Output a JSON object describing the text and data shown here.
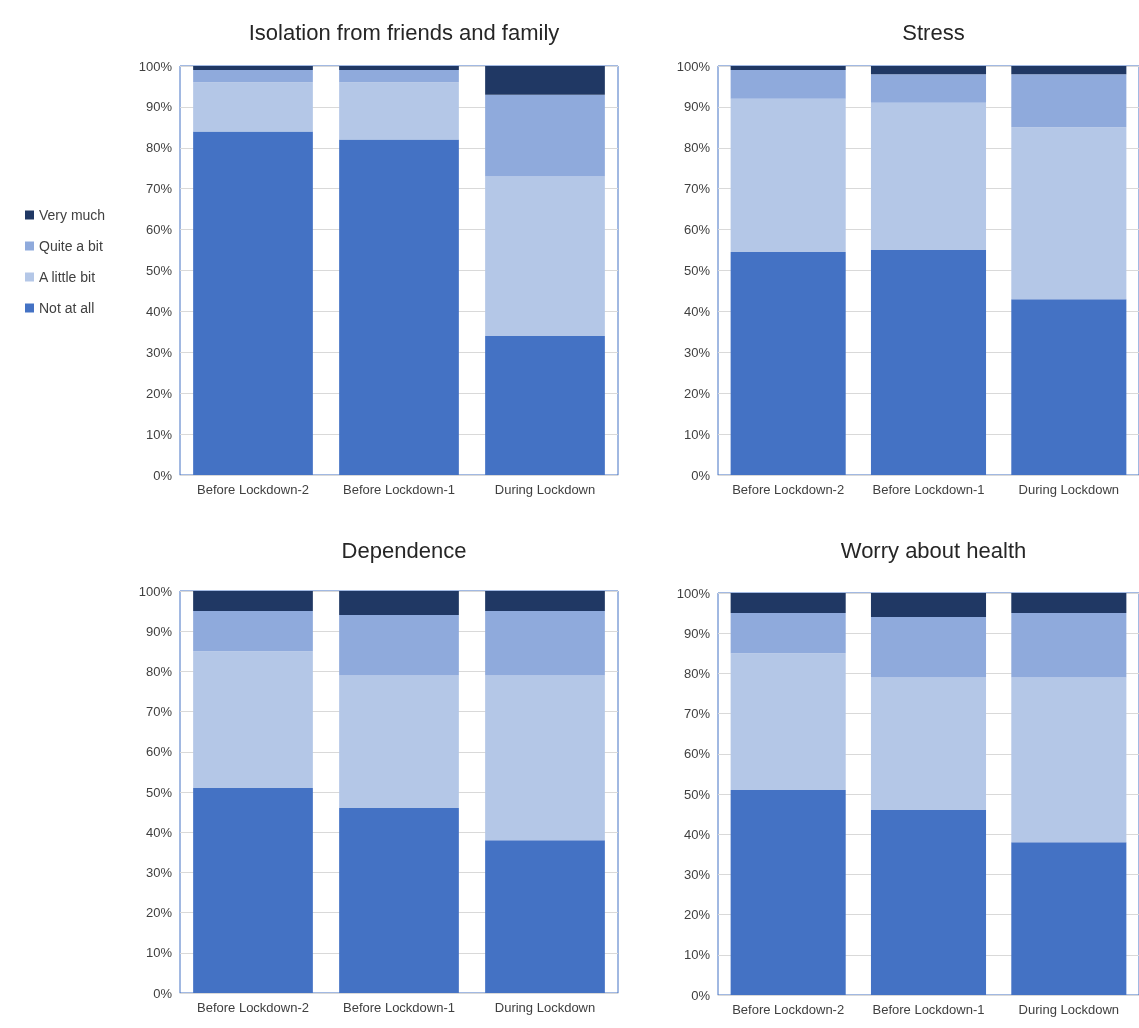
{
  "chart_data": [
    {
      "type": "bar",
      "title": "Isolation from friends and family",
      "categories": [
        "Before Lockdown-2",
        "Before Lockdown-1",
        "During Lockdown"
      ],
      "stacked": true,
      "ylim": [
        0,
        100
      ],
      "yticks": [
        {
          "value": 0,
          "label": "0%"
        },
        {
          "value": 10,
          "label": "10%"
        },
        {
          "value": 20,
          "label": "20%"
        },
        {
          "value": 30,
          "label": "30%"
        },
        {
          "value": 40,
          "label": "40%"
        },
        {
          "value": 50,
          "label": "50%"
        },
        {
          "value": 60,
          "label": "60%"
        },
        {
          "value": 70,
          "label": "70%"
        },
        {
          "value": 80,
          "label": "80%"
        },
        {
          "value": 90,
          "label": "90%"
        },
        {
          "value": 100,
          "label": "100%"
        }
      ],
      "grid": "y",
      "legend": "left",
      "series": [
        {
          "name": "Not at all",
          "color": "#4472c4",
          "values": [
            84,
            82,
            34
          ]
        },
        {
          "name": "A little bit",
          "color": "#b4c7e7",
          "values": [
            12,
            14,
            39
          ]
        },
        {
          "name": "Quite a bit",
          "color": "#8faadc",
          "values": [
            3,
            3,
            20
          ]
        },
        {
          "name": "Very much",
          "color": "#203864",
          "values": [
            1,
            1,
            7
          ]
        }
      ]
    },
    {
      "type": "bar",
      "title": "Stress",
      "categories": [
        "Before Lockdown-2",
        "Before Lockdown-1",
        "During Lockdown"
      ],
      "stacked": true,
      "ylim": [
        0,
        100
      ],
      "yticks": [
        {
          "value": 0,
          "label": "0%"
        },
        {
          "value": 10,
          "label": "10%"
        },
        {
          "value": 20,
          "label": "20%"
        },
        {
          "value": 30,
          "label": "30%"
        },
        {
          "value": 40,
          "label": "40%"
        },
        {
          "value": 50,
          "label": "50%"
        },
        {
          "value": 60,
          "label": "60%"
        },
        {
          "value": 70,
          "label": "70%"
        },
        {
          "value": 80,
          "label": "80%"
        },
        {
          "value": 90,
          "label": "90%"
        },
        {
          "value": 100,
          "label": "100%"
        }
      ],
      "grid": "y",
      "series": [
        {
          "color": "#4472c4",
          "values": [
            54.5,
            55,
            43
          ]
        },
        {
          "color": "#b4c7e7",
          "values": [
            37.5,
            36,
            42
          ]
        },
        {
          "color": "#8faadc",
          "values": [
            7,
            7,
            13
          ]
        },
        {
          "color": "#203864",
          "values": [
            1,
            2,
            2
          ]
        }
      ]
    },
    {
      "type": "bar",
      "title": "Dependence",
      "categories": [
        "Before Lockdown-2",
        "Before Lockdown-1",
        "During Lockdown"
      ],
      "stacked": true,
      "ylim": [
        0,
        100
      ],
      "yticks": [
        {
          "value": 0,
          "label": "0%"
        },
        {
          "value": 10,
          "label": "10%"
        },
        {
          "value": 20,
          "label": "20%"
        },
        {
          "value": 30,
          "label": "30%"
        },
        {
          "value": 40,
          "label": "40%"
        },
        {
          "value": 50,
          "label": "50%"
        },
        {
          "value": 60,
          "label": "60%"
        },
        {
          "value": 70,
          "label": "70%"
        },
        {
          "value": 80,
          "label": "80%"
        },
        {
          "value": 90,
          "label": "90%"
        },
        {
          "value": 100,
          "label": "100%"
        }
      ],
      "grid": "y",
      "series": [
        {
          "color": "#4472c4",
          "values": [
            51,
            46,
            38
          ]
        },
        {
          "color": "#b4c7e7",
          "values": [
            34,
            33,
            41
          ]
        },
        {
          "color": "#8faadc",
          "values": [
            10,
            15,
            16
          ]
        },
        {
          "color": "#203864",
          "values": [
            5,
            6,
            5
          ]
        }
      ]
    },
    {
      "type": "bar",
      "title": "Worry about health",
      "categories": [
        "Before Lockdown-2",
        "Before Lockdown-1",
        "During Lockdown"
      ],
      "stacked": true,
      "ylim": [
        0,
        100
      ],
      "yticks": [
        {
          "value": 0,
          "label": "0%"
        },
        {
          "value": 10,
          "label": "10%"
        },
        {
          "value": 20,
          "label": "20%"
        },
        {
          "value": 30,
          "label": "30%"
        },
        {
          "value": 40,
          "label": "40%"
        },
        {
          "value": 50,
          "label": "50%"
        },
        {
          "value": 60,
          "label": "60%"
        },
        {
          "value": 70,
          "label": "70%"
        },
        {
          "value": 80,
          "label": "80%"
        },
        {
          "value": 90,
          "label": "90%"
        },
        {
          "value": 100,
          "label": "100%"
        }
      ],
      "grid": "y",
      "series": [
        {
          "color": "#4472c4",
          "values": [
            51,
            46,
            38
          ]
        },
        {
          "color": "#b4c7e7",
          "values": [
            34,
            33,
            41
          ]
        },
        {
          "color": "#8faadc",
          "values": [
            10,
            15,
            16
          ]
        },
        {
          "color": "#203864",
          "values": [
            5,
            6,
            5
          ]
        }
      ]
    }
  ]
}
